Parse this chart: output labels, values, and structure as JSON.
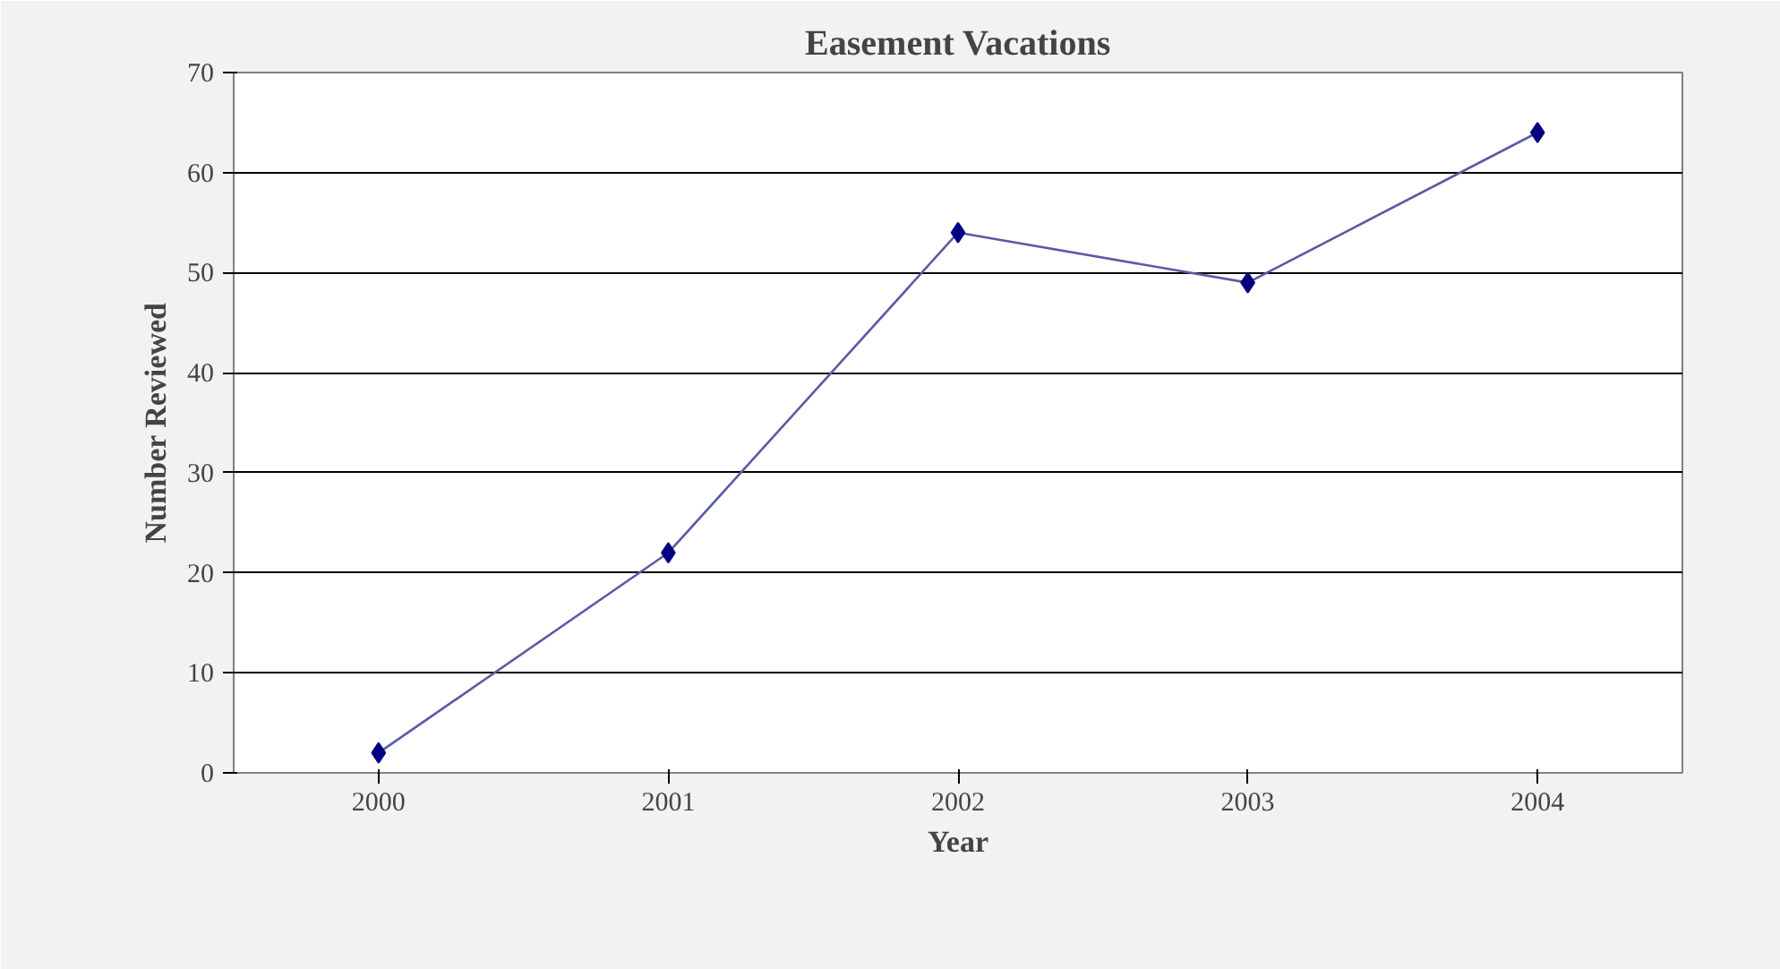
{
  "chart_data": {
    "type": "line",
    "title": "Easement Vacations",
    "xlabel": "Year",
    "ylabel": "Number Reviewed",
    "categories": [
      "2000",
      "2001",
      "2002",
      "2003",
      "2004"
    ],
    "series": [
      {
        "color": "#000080",
        "values": [
          2,
          22,
          54,
          49,
          64
        ]
      }
    ],
    "ylim": [
      0,
      70
    ],
    "yticks": [
      0,
      10,
      20,
      30,
      40,
      50,
      60,
      70
    ],
    "grid": "y",
    "marker": "diamond",
    "line_style": "solid"
  }
}
